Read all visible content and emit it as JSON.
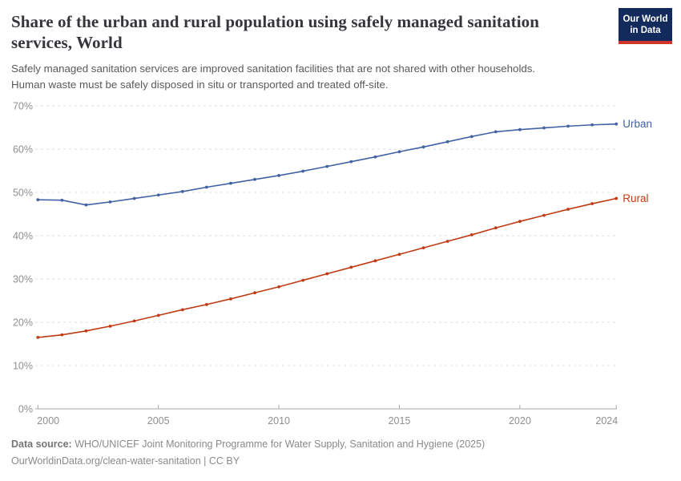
{
  "header": {
    "title": "Share of the urban and rural population using safely managed sanitation services, World",
    "subtitle_lines": [
      "Safely managed sanitation services are improved sanitation facilities that are not shared with other households.",
      "Human waste must be safely disposed in situ or transported and treated off-site."
    ]
  },
  "logo": {
    "line1": "Our World",
    "line2": "in Data"
  },
  "chart_data": {
    "type": "line",
    "title": "Share of the urban and rural population using safely managed sanitation services, World",
    "x": [
      2000,
      2001,
      2002,
      2003,
      2004,
      2005,
      2006,
      2007,
      2008,
      2009,
      2010,
      2011,
      2012,
      2013,
      2014,
      2015,
      2016,
      2017,
      2018,
      2019,
      2020,
      2021,
      2022,
      2023,
      2024
    ],
    "series": [
      {
        "name": "Urban",
        "color": "#4262a5",
        "values": [
          48.3,
          48.2,
          47.1,
          47.8,
          48.6,
          49.4,
          50.2,
          51.2,
          52.1,
          53.0,
          53.9,
          54.9,
          56.0,
          57.1,
          58.2,
          59.4,
          60.5,
          61.7,
          62.9,
          64.0,
          64.5,
          64.9,
          65.3,
          65.6,
          65.8
        ]
      },
      {
        "name": "Rural",
        "color": "#bf3b14",
        "values": [
          16.5,
          17.1,
          18.0,
          19.1,
          20.3,
          21.6,
          22.9,
          24.1,
          25.4,
          26.8,
          28.2,
          29.7,
          31.2,
          32.7,
          34.2,
          35.7,
          37.2,
          38.7,
          40.2,
          41.8,
          43.3,
          44.7,
          46.1,
          47.4,
          48.6
        ]
      }
    ],
    "xlabel": "",
    "ylabel": "",
    "ylim": [
      0,
      70
    ],
    "xlim": [
      2000,
      2024
    ],
    "yticks": [
      0,
      10,
      20,
      30,
      40,
      50,
      60,
      70
    ],
    "ytick_format": "{v}%",
    "xticks": [
      2000,
      2005,
      2010,
      2015,
      2020,
      2024
    ],
    "grid": "horizontal-dashed",
    "legend_position": "line-end-labels",
    "colors": {
      "grid": "#dedede",
      "axis": "#a8a8a8",
      "tick_label": "#8f8f8f"
    }
  },
  "footer": {
    "datasource_label": "Data source:",
    "datasource_text": " WHO/UNICEF Joint Monitoring Programme for Water Supply, Sanitation and Hygiene (2025)",
    "link_line": "OurWorldinData.org/clean-water-sanitation | CC BY"
  }
}
